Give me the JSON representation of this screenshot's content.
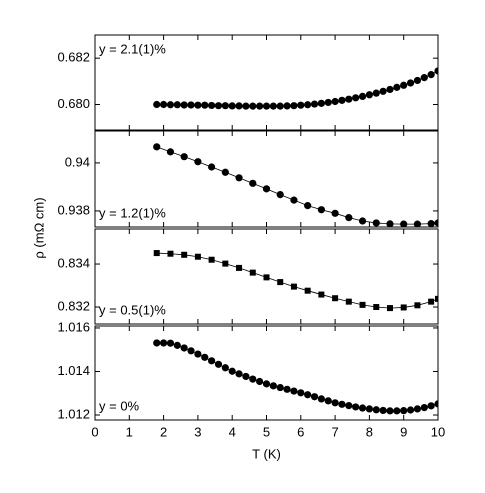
{
  "ylabel": "ρ (mΩ cm)",
  "chart_data": [
    {
      "type": "line",
      "annotation": "y = 2.1(1)%",
      "annotation_corner": "upper left",
      "marker": "circle",
      "color": "#000000",
      "x": [
        1.8,
        2.0,
        2.2,
        2.4,
        2.6,
        2.8,
        3.0,
        3.2,
        3.4,
        3.6,
        3.8,
        4.0,
        4.2,
        4.4,
        4.6,
        4.8,
        5.0,
        5.2,
        5.4,
        5.6,
        5.8,
        6.0,
        6.2,
        6.4,
        6.6,
        6.8,
        7.0,
        7.2,
        7.4,
        7.6,
        7.8,
        8.0,
        8.2,
        8.4,
        8.6,
        8.8,
        9.0,
        9.2,
        9.4,
        9.6,
        9.8,
        10.0
      ],
      "values": [
        0.68,
        0.68,
        0.67999,
        0.67999,
        0.67998,
        0.67998,
        0.67997,
        0.67997,
        0.67996,
        0.67995,
        0.67995,
        0.67994,
        0.67994,
        0.67993,
        0.67993,
        0.67993,
        0.67993,
        0.67993,
        0.67993,
        0.67994,
        0.67995,
        0.67997,
        0.67999,
        0.68002,
        0.68005,
        0.68009,
        0.68013,
        0.68018,
        0.68023,
        0.68029,
        0.68035,
        0.68042,
        0.68049,
        0.68057,
        0.68065,
        0.68074,
        0.68083,
        0.68093,
        0.68104,
        0.68116,
        0.68129,
        0.68145
      ],
      "xlim": [
        0,
        10
      ],
      "xticks": [
        0,
        1,
        2,
        3,
        4,
        5,
        6,
        7,
        8,
        9,
        10
      ],
      "ylim": [
        0.6789,
        0.683
      ],
      "yticks": [
        {
          "value": 0.68,
          "label": "0.680"
        },
        {
          "value": 0.682,
          "label": "0.682"
        }
      ]
    },
    {
      "type": "line",
      "annotation": "y = 1.2(1)%",
      "annotation_corner": "lower left",
      "marker": "circle",
      "color": "#000000",
      "x": [
        1.8,
        2.2,
        2.6,
        3.0,
        3.4,
        3.8,
        4.2,
        4.6,
        5.0,
        5.4,
        5.8,
        6.2,
        6.6,
        7.0,
        7.4,
        7.8,
        8.2,
        8.6,
        9.0,
        9.4,
        9.8,
        10.0
      ],
      "values": [
        0.94067,
        0.94046,
        0.94026,
        0.94005,
        0.93983,
        0.93961,
        0.93938,
        0.93915,
        0.93892,
        0.93868,
        0.93845,
        0.93822,
        0.93805,
        0.9379,
        0.93772,
        0.93758,
        0.9375,
        0.93746,
        0.93745,
        0.93745,
        0.93747,
        0.9375
      ],
      "xlim": [
        0,
        10
      ],
      "xticks": [
        0,
        1,
        2,
        3,
        4,
        5,
        6,
        7,
        8,
        9,
        10
      ],
      "ylim": [
        0.93733,
        0.94133
      ],
      "yticks": [
        0.938,
        0.94
      ]
    },
    {
      "type": "line",
      "annotation": "y = 0.5(1)%",
      "annotation_corner": "lower left",
      "marker": "square",
      "color": "#000000",
      "x": [
        1.8,
        2.2,
        2.6,
        3.0,
        3.4,
        3.8,
        4.2,
        4.6,
        5.0,
        5.4,
        5.8,
        6.2,
        6.6,
        7.0,
        7.4,
        7.8,
        8.2,
        8.6,
        9.0,
        9.4,
        9.8,
        10.0
      ],
      "values": [
        0.83451,
        0.83448,
        0.83443,
        0.83434,
        0.8342,
        0.83402,
        0.83382,
        0.8336,
        0.83338,
        0.83316,
        0.83295,
        0.83276,
        0.83258,
        0.83241,
        0.83225,
        0.8321,
        0.832,
        0.83195,
        0.83198,
        0.83208,
        0.83225,
        0.83238
      ],
      "xlim": [
        0,
        10
      ],
      "xticks": [
        0,
        1,
        2,
        3,
        4,
        5,
        6,
        7,
        8,
        9,
        10
      ],
      "ylim": [
        0.83121,
        0.83563
      ],
      "yticks": [
        {
          "value": 0.832,
          "label": "0.832"
        },
        {
          "value": 0.834,
          "label": "0.834"
        }
      ]
    },
    {
      "type": "line",
      "annotation": "y = 0%",
      "annotation_corner": "lower left",
      "marker": "circle",
      "color": "#000000",
      "xlabel": "T (K)",
      "x": [
        1.8,
        2.0,
        2.2,
        2.4,
        2.6,
        2.8,
        3.0,
        3.2,
        3.4,
        3.6,
        3.8,
        4.0,
        4.2,
        4.4,
        4.6,
        4.8,
        5.0,
        5.2,
        5.4,
        5.6,
        5.8,
        6.0,
        6.2,
        6.4,
        6.6,
        6.8,
        7.0,
        7.2,
        7.4,
        7.6,
        7.8,
        8.0,
        8.2,
        8.4,
        8.6,
        8.8,
        9.0,
        9.2,
        9.4,
        9.6,
        9.8,
        10.0
      ],
      "values": [
        1.01531,
        1.01531,
        1.0153,
        1.0152,
        1.01508,
        1.01495,
        1.0148,
        1.01465,
        1.01449,
        1.01433,
        1.01417,
        1.01401,
        1.01389,
        1.01377,
        1.01365,
        1.01354,
        1.01343,
        1.01334,
        1.01326,
        1.01318,
        1.0131,
        1.01302,
        1.01293,
        1.01284,
        1.01274,
        1.01265,
        1.01256,
        1.01249,
        1.01243,
        1.01237,
        1.01232,
        1.01228,
        1.01224,
        1.01221,
        1.01219,
        1.01219,
        1.0122,
        1.01223,
        1.01228,
        1.01234,
        1.01242,
        1.01251
      ],
      "xlim": [
        0,
        10
      ],
      "xticks": [
        0,
        1,
        2,
        3,
        4,
        5,
        6,
        7,
        8,
        9,
        10
      ],
      "ylim": [
        1.01177,
        1.01609
      ],
      "yticks": [
        {
          "value": 1.012,
          "label": "1.012"
        },
        {
          "value": 1.014,
          "label": "1.014"
        },
        {
          "value": 1.016,
          "label": "1.016"
        }
      ]
    }
  ]
}
